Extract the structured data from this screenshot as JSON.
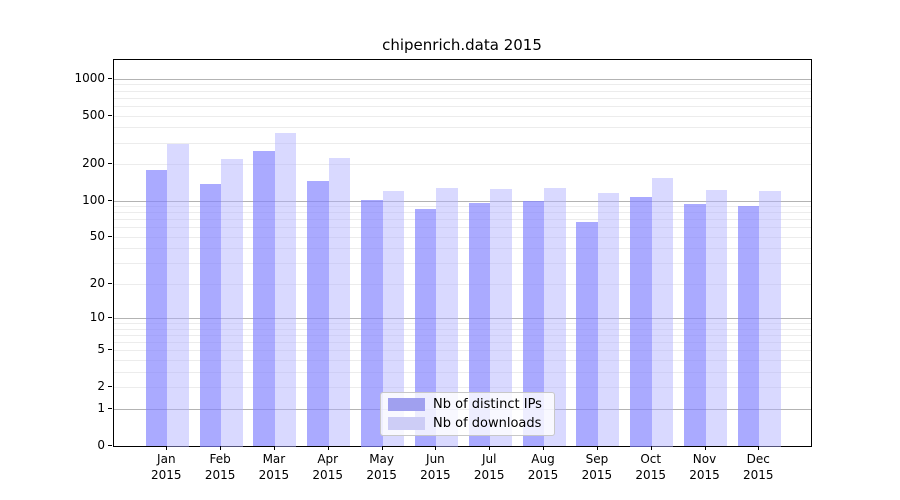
{
  "chart_data": {
    "type": "bar",
    "title": "chipenrich.data 2015",
    "categories": [
      "Jan",
      "Feb",
      "Mar",
      "Apr",
      "May",
      "Jun",
      "Jul",
      "Aug",
      "Sep",
      "Oct",
      "Nov",
      "Dec"
    ],
    "x_year": "2015",
    "series": [
      {
        "name": "Nb of distinct IPs",
        "color": "rgba(130,130,255,0.68)",
        "legend_color": "#a0a0ef",
        "values": [
          180,
          137,
          254,
          144,
          102,
          85,
          96,
          99,
          67,
          107,
          93,
          90
        ]
      },
      {
        "name": "Nb of downloads",
        "color": "rgba(175,175,255,0.47)",
        "legend_color": "#cdcdf6",
        "values": [
          292,
          222,
          363,
          223,
          119,
          127,
          125,
          128,
          115,
          155,
          123,
          121
        ]
      }
    ],
    "y_ticks": [
      0,
      1,
      2,
      5,
      10,
      20,
      50,
      100,
      200,
      500,
      1000
    ],
    "y_scale": "log10(value+1)",
    "ylim": [
      0,
      1000
    ],
    "grid": true,
    "legend_position": "lower center"
  },
  "colors": {
    "grid_major": "#b3b3b3",
    "grid_minor": "#ececec",
    "axis": "#000000",
    "background": "#ffffff"
  }
}
